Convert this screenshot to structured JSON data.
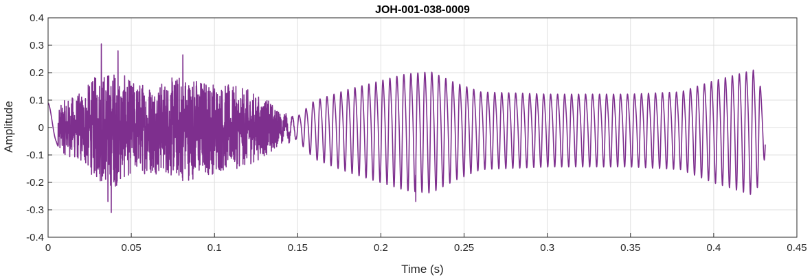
{
  "chart_data": {
    "type": "line",
    "title": "JOH-001-038-0009",
    "xlabel": "Time (s)",
    "ylabel": "Amplitude",
    "xlim": [
      0,
      0.45
    ],
    "ylim": [
      -0.4,
      0.4
    ],
    "grid": true,
    "xticks": [
      0,
      0.05,
      0.1,
      0.15,
      0.2,
      0.25,
      0.3,
      0.35,
      0.4,
      0.45
    ],
    "xtick_labels": [
      "0",
      "0.05",
      "0.1",
      "0.15",
      "0.2",
      "0.25",
      "0.3",
      "0.35",
      "0.4",
      "0.45"
    ],
    "yticks": [
      -0.4,
      -0.3,
      -0.2,
      -0.1,
      0,
      0.1,
      0.2,
      0.3,
      0.4
    ],
    "ytick_labels": [
      "-0.4",
      "-0.3",
      "-0.2",
      "-0.1",
      "0",
      "0.1",
      "0.2",
      "0.3",
      "0.4"
    ],
    "series": [
      {
        "color": "#7E2F8E",
        "x_end": 0.431,
        "envelope": [
          {
            "t": 0.0,
            "amp": 0.09
          },
          {
            "t": 0.005,
            "amp": 0.06
          },
          {
            "t": 0.01,
            "amp": 0.1
          },
          {
            "t": 0.02,
            "amp": 0.13
          },
          {
            "t": 0.03,
            "amp": 0.2
          },
          {
            "t": 0.04,
            "amp": 0.22
          },
          {
            "t": 0.05,
            "amp": 0.17
          },
          {
            "t": 0.07,
            "amp": 0.17
          },
          {
            "t": 0.08,
            "amp": 0.2
          },
          {
            "t": 0.1,
            "amp": 0.17
          },
          {
            "t": 0.12,
            "amp": 0.14
          },
          {
            "t": 0.135,
            "amp": 0.09
          },
          {
            "t": 0.15,
            "amp": 0.05
          },
          {
            "t": 0.16,
            "amp": 0.12
          },
          {
            "t": 0.18,
            "amp": 0.17
          },
          {
            "t": 0.2,
            "amp": 0.21
          },
          {
            "t": 0.215,
            "amp": 0.24
          },
          {
            "t": 0.23,
            "amp": 0.25
          },
          {
            "t": 0.245,
            "amp": 0.2
          },
          {
            "t": 0.26,
            "amp": 0.16
          },
          {
            "t": 0.3,
            "amp": 0.15
          },
          {
            "t": 0.35,
            "amp": 0.15
          },
          {
            "t": 0.38,
            "amp": 0.16
          },
          {
            "t": 0.4,
            "amp": 0.21
          },
          {
            "t": 0.415,
            "amp": 0.24
          },
          {
            "t": 0.425,
            "amp": 0.26
          },
          {
            "t": 0.431,
            "amp": 0.11
          }
        ],
        "noise_end": 0.15,
        "voiced_start": 0.15,
        "voiced_period": 0.0042,
        "peaks": [
          {
            "x": 0.032,
            "y": 0.305
          },
          {
            "x": 0.038,
            "y": -0.31
          },
          {
            "x": 0.036,
            "y": -0.27
          },
          {
            "x": 0.042,
            "y": 0.28
          },
          {
            "x": 0.081,
            "y": 0.265
          },
          {
            "x": 0.221,
            "y": -0.27
          }
        ]
      }
    ]
  }
}
